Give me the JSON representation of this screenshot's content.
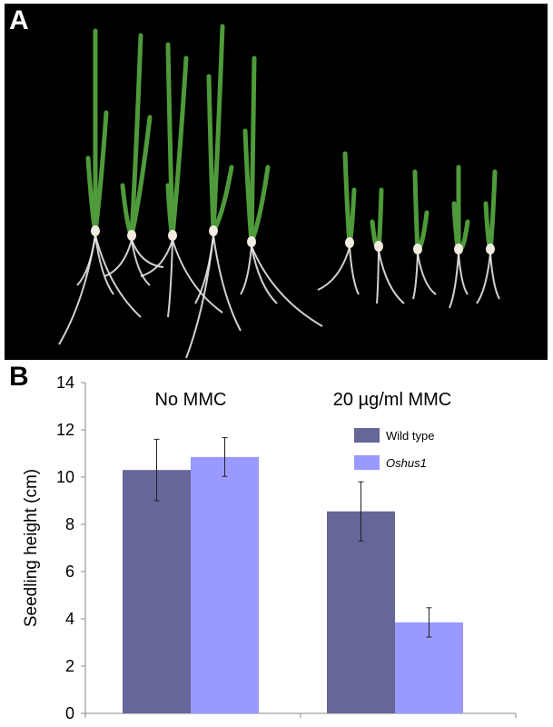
{
  "panel_a": {
    "label": "A",
    "description_icon": "rice-seedlings-photo"
  },
  "panel_b": {
    "label": "B"
  },
  "colors": {
    "wild_type": "#666699",
    "oshus1": "#9999ff",
    "photo_background": "#000000",
    "leaf_green": "#4f9a3a",
    "root_white": "#e8e8e8"
  },
  "chart_data": {
    "type": "bar",
    "groups": [
      "No MMC",
      "20 µg/ml MMC"
    ],
    "ylabel": "Seedling height (cm)",
    "xlabel": "",
    "ylim": [
      0,
      14
    ],
    "yticks": [
      0,
      2,
      4,
      6,
      8,
      10,
      12,
      14
    ],
    "grid": false,
    "legend_position": "right, inside plot area",
    "series": [
      {
        "name": "Wild type",
        "italic": false,
        "color": "#666699",
        "values": [
          10.3,
          8.55
        ],
        "errors": [
          1.3,
          1.25
        ]
      },
      {
        "name": "Oshus1",
        "italic": true,
        "color": "#9999ff",
        "values": [
          10.85,
          3.85
        ],
        "errors": [
          0.82,
          0.62
        ]
      }
    ]
  }
}
